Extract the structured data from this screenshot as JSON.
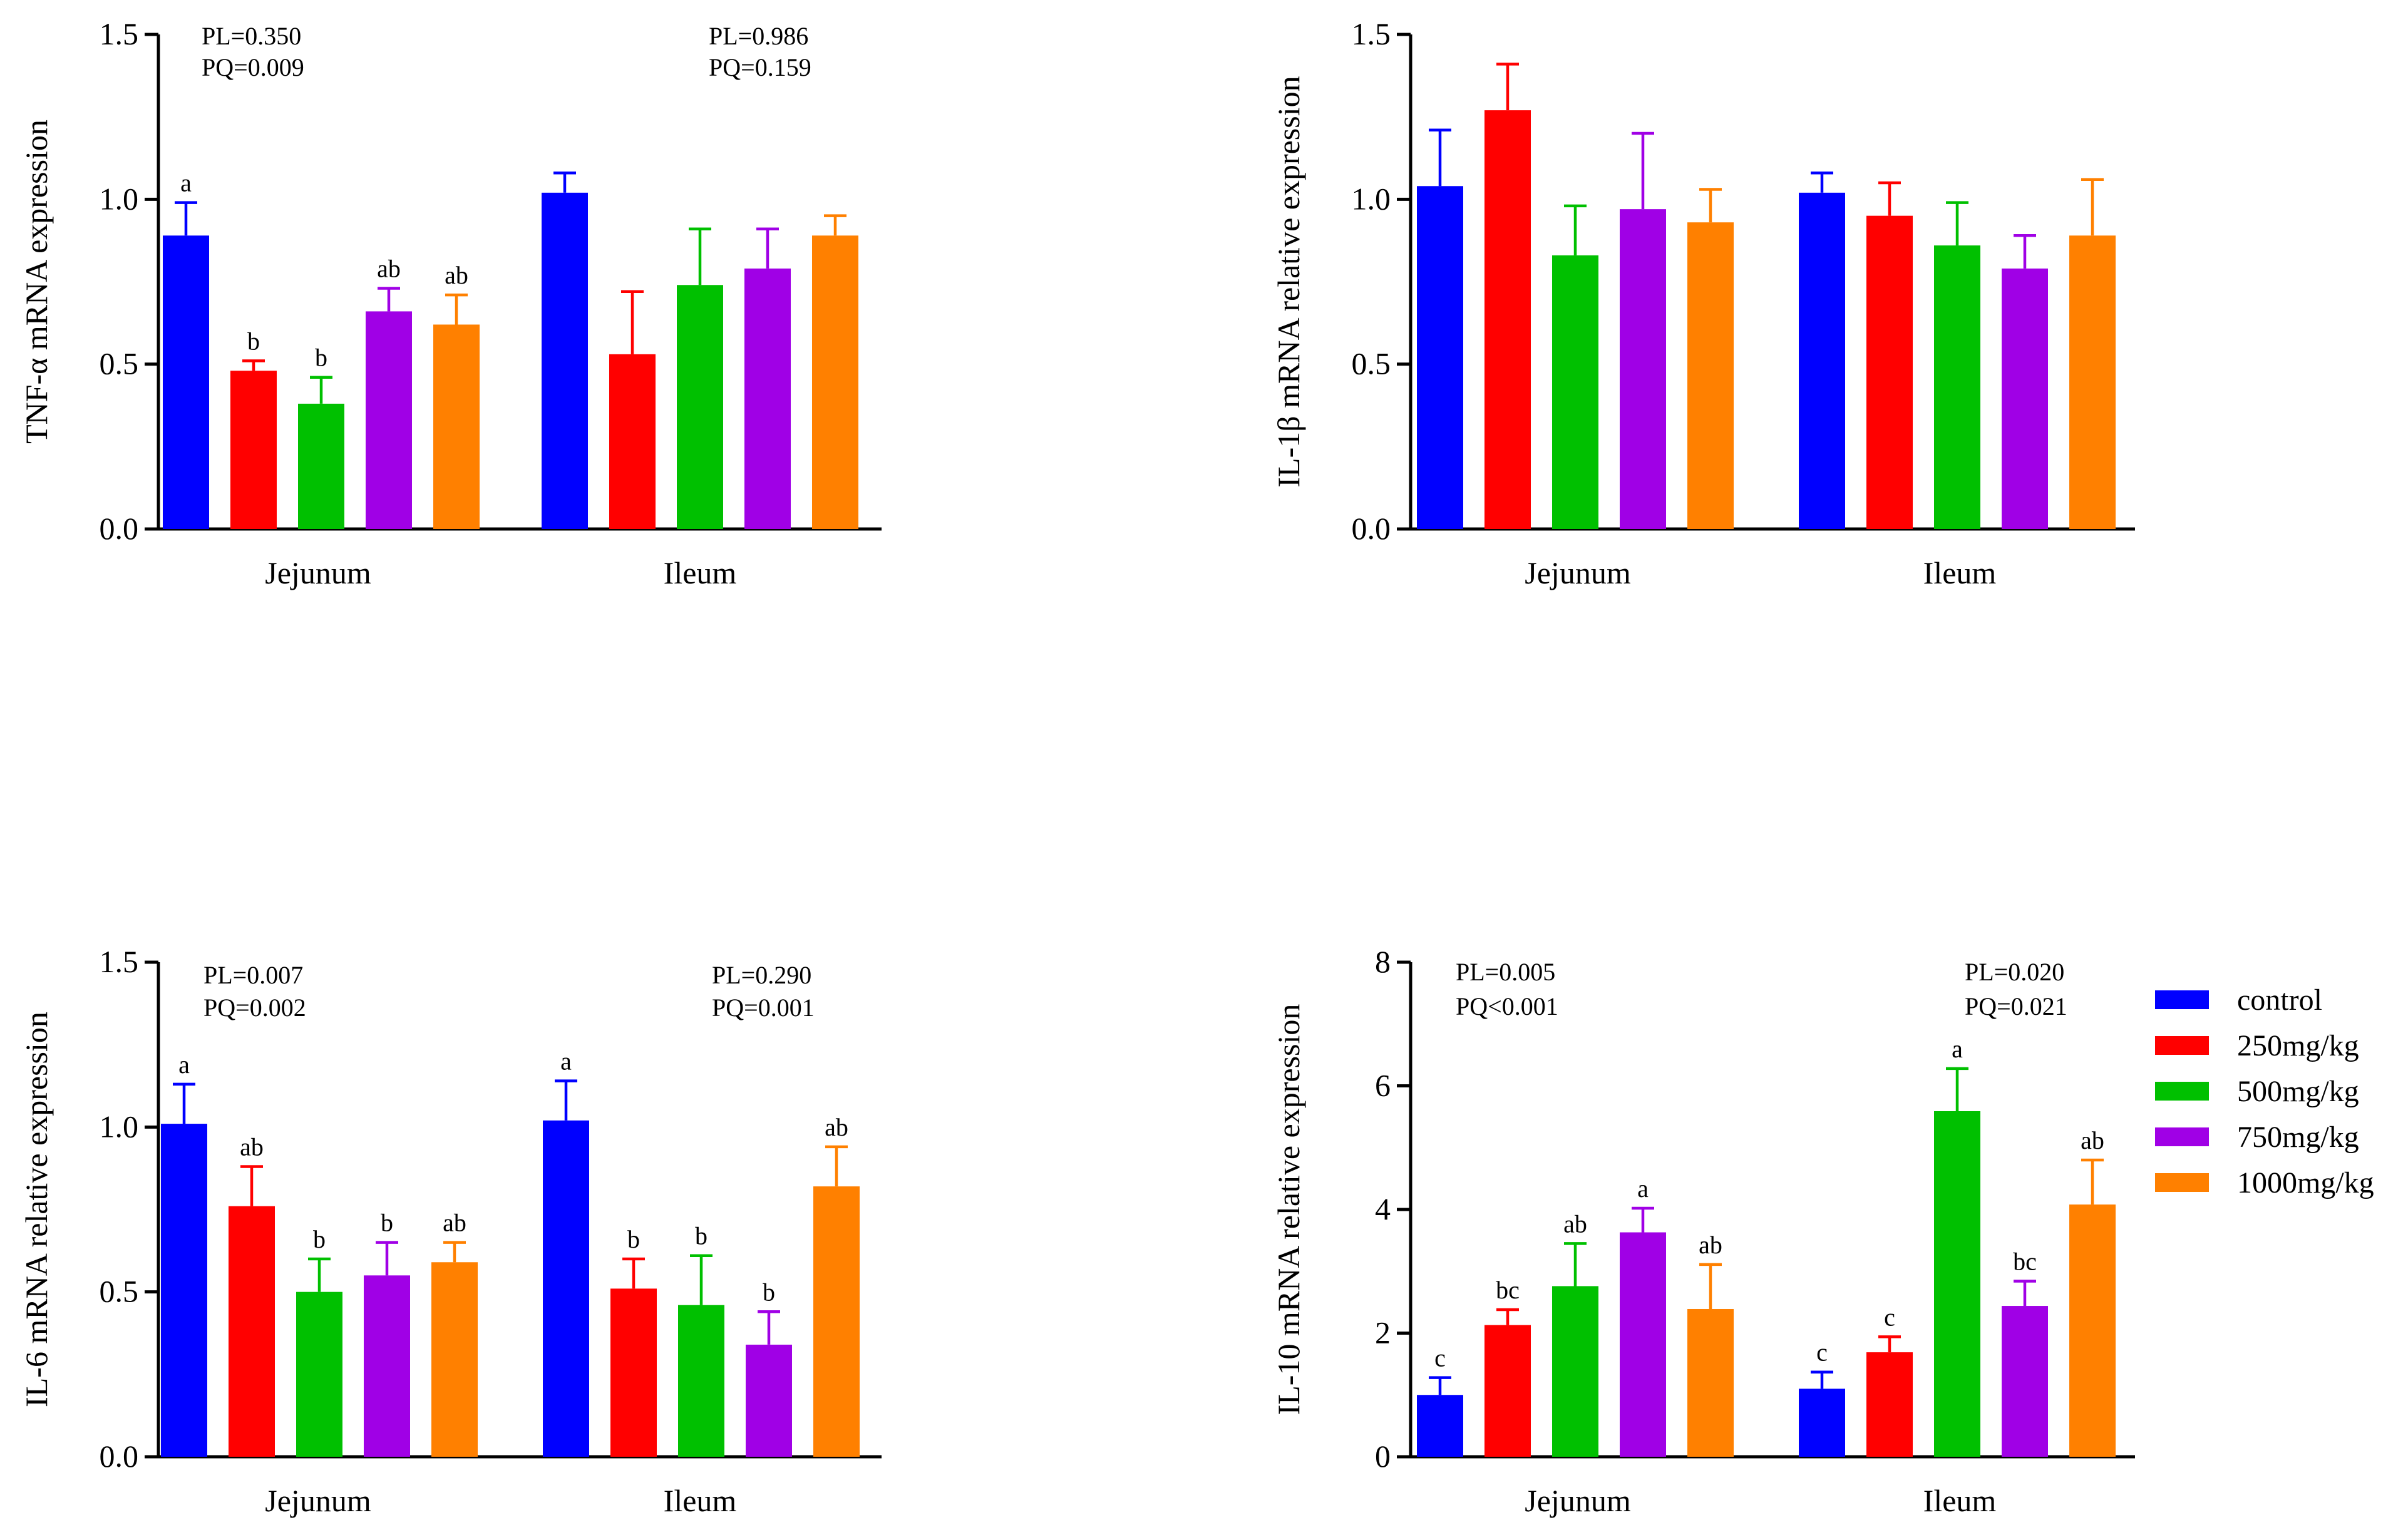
{
  "legend": {
    "position": "right of bottom-right panel",
    "items": [
      {
        "label": "control",
        "color": "#0000ff"
      },
      {
        "label": "250mg/kg",
        "color": "#ff0000"
      },
      {
        "label": "500mg/kg",
        "color": "#00c000"
      },
      {
        "label": "750mg/kg",
        "color": "#a000e6"
      },
      {
        "label": "1000mg/kg",
        "color": "#ff8000"
      }
    ]
  },
  "chart_data": [
    {
      "id": "tnf",
      "type": "bar",
      "ylabel": "TNF-α mRNA expression",
      "xlabel": "",
      "ylim": [
        0,
        1.5
      ],
      "yticks": [
        "0.0",
        "0.5",
        "1.0",
        "1.5"
      ],
      "categories": [
        "Jejunum",
        "Ileum"
      ],
      "series": [
        {
          "name": "control",
          "values": [
            0.89,
            1.02
          ],
          "errors": [
            0.1,
            0.06
          ],
          "letters": [
            "a",
            ""
          ]
        },
        {
          "name": "250mg/kg",
          "values": [
            0.48,
            0.53
          ],
          "errors": [
            0.03,
            0.19
          ],
          "letters": [
            "b",
            ""
          ]
        },
        {
          "name": "500mg/kg",
          "values": [
            0.38,
            0.74
          ],
          "errors": [
            0.08,
            0.17
          ],
          "letters": [
            "b",
            ""
          ]
        },
        {
          "name": "750mg/kg",
          "values": [
            0.66,
            0.79
          ],
          "errors": [
            0.07,
            0.12
          ],
          "letters": [
            "ab",
            ""
          ]
        },
        {
          "name": "1000mg/kg",
          "values": [
            0.62,
            0.89
          ],
          "errors": [
            0.09,
            0.06
          ],
          "letters": [
            "ab",
            ""
          ]
        }
      ],
      "annotations": [
        {
          "group": "Jejunum",
          "pl": "PL=0.350",
          "pq": "PQ=0.009"
        },
        {
          "group": "Ileum",
          "pl": "PL=0.986",
          "pq": "PQ=0.159"
        }
      ]
    },
    {
      "id": "il1b",
      "type": "bar",
      "ylabel": "IL-1β mRNA relative expression",
      "xlabel": "",
      "ylim": [
        0,
        1.5
      ],
      "yticks": [
        "0.0",
        "0.5",
        "1.0",
        "1.5"
      ],
      "categories": [
        "Jejunum",
        "Ileum"
      ],
      "series": [
        {
          "name": "control",
          "values": [
            1.04,
            1.02
          ],
          "errors": [
            0.17,
            0.06
          ],
          "letters": [
            "",
            ""
          ]
        },
        {
          "name": "250mg/kg",
          "values": [
            1.27,
            0.95
          ],
          "errors": [
            0.14,
            0.1
          ],
          "letters": [
            "",
            ""
          ]
        },
        {
          "name": "500mg/kg",
          "values": [
            0.83,
            0.86
          ],
          "errors": [
            0.15,
            0.13
          ],
          "letters": [
            "",
            ""
          ]
        },
        {
          "name": "750mg/kg",
          "values": [
            0.97,
            0.79
          ],
          "errors": [
            0.23,
            0.1
          ],
          "letters": [
            "",
            ""
          ]
        },
        {
          "name": "1000mg/kg",
          "values": [
            0.93,
            0.89
          ],
          "errors": [
            0.1,
            0.17
          ],
          "letters": [
            "",
            ""
          ]
        }
      ],
      "annotations": []
    },
    {
      "id": "il6",
      "type": "bar",
      "ylabel": "IL-6 mRNA relative expression",
      "xlabel": "",
      "ylim": [
        0,
        1.5
      ],
      "yticks": [
        "0.0",
        "0.5",
        "1.0",
        "1.5"
      ],
      "categories": [
        "Jejunum",
        "Ileum"
      ],
      "series": [
        {
          "name": "control",
          "values": [
            1.01,
            1.02
          ],
          "errors": [
            0.12,
            0.12
          ],
          "letters": [
            "a",
            "a"
          ]
        },
        {
          "name": "250mg/kg",
          "values": [
            0.76,
            0.51
          ],
          "errors": [
            0.12,
            0.09
          ],
          "letters": [
            "ab",
            "b"
          ]
        },
        {
          "name": "500mg/kg",
          "values": [
            0.5,
            0.46
          ],
          "errors": [
            0.1,
            0.15
          ],
          "letters": [
            "b",
            "b"
          ]
        },
        {
          "name": "750mg/kg",
          "values": [
            0.55,
            0.34
          ],
          "errors": [
            0.1,
            0.1
          ],
          "letters": [
            "b",
            "b"
          ]
        },
        {
          "name": "1000mg/kg",
          "values": [
            0.59,
            0.82
          ],
          "errors": [
            0.06,
            0.12
          ],
          "letters": [
            "ab",
            "ab"
          ]
        }
      ],
      "annotations": [
        {
          "group": "Jejunum",
          "pl": "PL=0.007",
          "pq": "PQ=0.002"
        },
        {
          "group": "Ileum",
          "pl": "PL=0.290",
          "pq": "PQ=0.001"
        }
      ]
    },
    {
      "id": "il10",
      "type": "bar",
      "ylabel": "IL-10 mRNA relative expression",
      "xlabel": "",
      "ylim": [
        0,
        8
      ],
      "yticks": [
        "0",
        "2",
        "4",
        "6",
        "8"
      ],
      "categories": [
        "Jejunum",
        "Ileum"
      ],
      "series": [
        {
          "name": "control",
          "values": [
            1.0,
            1.1
          ],
          "errors": [
            0.28,
            0.27
          ],
          "letters": [
            "c",
            "c"
          ]
        },
        {
          "name": "250mg/kg",
          "values": [
            2.13,
            1.69
          ],
          "errors": [
            0.25,
            0.25
          ],
          "letters": [
            "bc",
            "c"
          ]
        },
        {
          "name": "500mg/kg",
          "values": [
            2.76,
            5.59
          ],
          "errors": [
            0.69,
            0.69
          ],
          "letters": [
            "ab",
            "a"
          ]
        },
        {
          "name": "750mg/kg",
          "values": [
            3.63,
            2.44
          ],
          "errors": [
            0.39,
            0.4
          ],
          "letters": [
            "a",
            "bc"
          ]
        },
        {
          "name": "1000mg/kg",
          "values": [
            2.39,
            4.08
          ],
          "errors": [
            0.72,
            0.72
          ],
          "letters": [
            "ab",
            "ab"
          ]
        }
      ],
      "annotations": [
        {
          "group": "Jejunum",
          "pl": "PL=0.005",
          "pq": "PQ<0.001"
        },
        {
          "group": "Ileum",
          "pl": "PL=0.020",
          "pq": "PQ=0.021"
        }
      ]
    }
  ]
}
